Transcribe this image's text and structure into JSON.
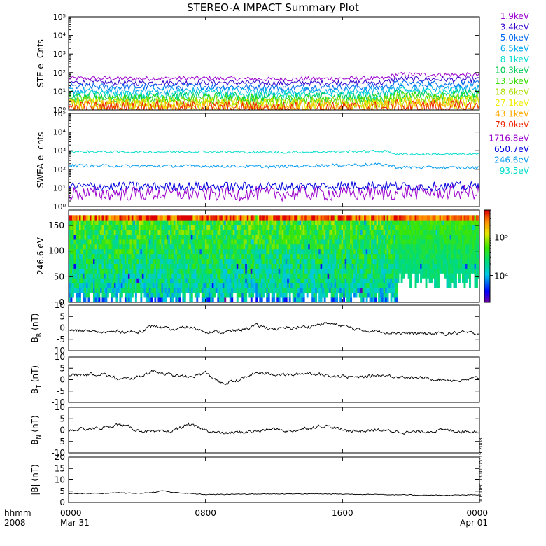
{
  "title": "STEREO-A IMPACT Summary Plot",
  "time_axis": {
    "left_labels": [
      "hhmm",
      "2008"
    ],
    "ticks": [
      {
        "hour": 0,
        "label": "0000",
        "sublabel": "Mar 31"
      },
      {
        "hour": 8,
        "label": "0800",
        "sublabel": ""
      },
      {
        "hour": 16,
        "label": "1600",
        "sublabel": ""
      },
      {
        "hour": 24,
        "label": "0000",
        "sublabel": "Apr 01"
      }
    ],
    "range_hours": [
      0,
      24
    ]
  },
  "side_note": "Tue Dec 13 01:05:19 2008",
  "colorbar": {
    "tick_labels": [
      "10⁴",
      "10⁵"
    ],
    "range": [
      2000,
      500000
    ],
    "scale": "log"
  },
  "chart_data": [
    {
      "type": "line",
      "panel": "STE",
      "ylabel": "STE e- Cnts",
      "yscale": "log",
      "ylim": [
        1,
        100000
      ],
      "ytick_labels": [
        "10⁰",
        "10¹",
        "10²",
        "10³",
        "10⁴",
        "10⁵"
      ],
      "x_hours": [
        0,
        4,
        8,
        12,
        16,
        18.5,
        19.2,
        24
      ],
      "series": [
        {
          "name": "1.9keV",
          "color": "#9900cc",
          "values": [
            50,
            48,
            50,
            44,
            48,
            48,
            80,
            75
          ]
        },
        {
          "name": "3.4keV",
          "color": "#3300cc",
          "values": [
            30,
            28,
            30,
            27,
            29,
            29,
            45,
            42
          ]
        },
        {
          "name": "5.0keV",
          "color": "#0066ee",
          "values": [
            18,
            17,
            18,
            16,
            17,
            17,
            26,
            24
          ]
        },
        {
          "name": "6.5keV",
          "color": "#00aaee",
          "values": [
            11,
            10,
            11,
            10,
            10,
            10,
            16,
            15
          ]
        },
        {
          "name": "8.1keV",
          "color": "#00ddcc",
          "values": [
            7,
            6.5,
            7,
            6.5,
            6.5,
            6.5,
            10,
            9
          ]
        },
        {
          "name": "10.3keV",
          "color": "#00cc55",
          "values": [
            5,
            4.6,
            5,
            4.6,
            4.6,
            4.6,
            7,
            6.5
          ]
        },
        {
          "name": "13.5keV",
          "color": "#33dd00",
          "values": [
            3.6,
            3.4,
            3.6,
            3.3,
            3.4,
            3.4,
            5,
            4.6
          ]
        },
        {
          "name": "18.6keV",
          "color": "#aadd00",
          "values": [
            2.6,
            2.5,
            2.6,
            2.4,
            2.5,
            2.5,
            3.6,
            3.4
          ]
        },
        {
          "name": "27.1keV",
          "color": "#eeee00",
          "values": [
            1.9,
            1.8,
            1.9,
            1.8,
            1.8,
            1.8,
            2.6,
            2.5
          ]
        },
        {
          "name": "43.1keV",
          "color": "#ffaa00",
          "values": [
            1.5,
            1.4,
            1.5,
            1.4,
            1.4,
            1.4,
            1.9,
            1.8
          ]
        },
        {
          "name": "79.0keV",
          "color": "#ee2200",
          "values": [
            1.2,
            1.15,
            1.2,
            1.15,
            1.15,
            1.15,
            1.4,
            1.35
          ]
        }
      ]
    },
    {
      "type": "line",
      "panel": "SWEA",
      "ylabel": "SWEA e- cnts",
      "yscale": "log",
      "ylim": [
        1,
        100000
      ],
      "ytick_labels": [
        "10⁰",
        "10¹",
        "10²",
        "10³",
        "10⁴",
        "10⁵"
      ],
      "x_hours": [
        0,
        4,
        8,
        12,
        16,
        18.5,
        19.2,
        24
      ],
      "series": [
        {
          "name": "1716.8eV",
          "color": "#9900cc",
          "values": [
            5,
            5,
            5,
            5,
            5,
            5,
            6,
            6
          ]
        },
        {
          "name": "650.7eV",
          "color": "#0000dd",
          "values": [
            12,
            12,
            12,
            12,
            13,
            14,
            12,
            12
          ]
        },
        {
          "name": "246.6eV",
          "color": "#0099ee",
          "values": [
            160,
            150,
            150,
            140,
            170,
            180,
            130,
            120
          ]
        },
        {
          "name": "93.5eV",
          "color": "#00ddcc",
          "values": [
            900,
            850,
            900,
            800,
            900,
            950,
            650,
            650
          ]
        }
      ]
    },
    {
      "type": "heatmap",
      "panel": "PAD",
      "ylabel": "246.6 eV",
      "ylim": [
        0,
        180
      ],
      "yticks": [
        0,
        50,
        100,
        150
      ],
      "x_hours": [
        0,
        6,
        12,
        18.5,
        19.5,
        22,
        24
      ],
      "typical_value_range": [
        8000,
        80000
      ],
      "top_edge_value": 200000
    },
    {
      "type": "line",
      "panel": "BR",
      "ylabel": "B",
      "ylabel_sub": "R",
      "ylabel_unit": "(nT)",
      "ylim": [
        -10,
        10
      ],
      "yticks": [
        -10,
        -5,
        0,
        5,
        10
      ],
      "x_hours": [
        0,
        2,
        3,
        4,
        5,
        6,
        7,
        8,
        9,
        10,
        11,
        12,
        13,
        14,
        15,
        16,
        17,
        18,
        19,
        20,
        21,
        22,
        23,
        24
      ],
      "values": [
        -1,
        -2,
        -1.5,
        -2,
        1,
        -1,
        0.5,
        -1.5,
        -2,
        -1,
        1,
        -0.5,
        0,
        0.5,
        2,
        1,
        -1,
        -1.5,
        -2,
        -2.5,
        -2.5,
        -2.5,
        -2,
        -2.5
      ]
    },
    {
      "type": "line",
      "panel": "BT",
      "ylabel": "B",
      "ylabel_sub": "T",
      "ylabel_unit": "(nT)",
      "ylim": [
        -10,
        10
      ],
      "yticks": [
        -10,
        -5,
        0,
        5,
        10
      ],
      "x_hours": [
        0,
        2,
        3,
        4,
        5,
        6,
        7,
        8,
        9,
        10,
        11,
        12,
        13,
        14,
        15,
        16,
        17,
        18,
        19,
        20,
        21,
        22,
        23,
        24
      ],
      "values": [
        2,
        2.5,
        0,
        1,
        4,
        2,
        1,
        3,
        -2,
        0,
        3,
        2.5,
        2,
        3,
        2,
        1.5,
        1,
        2,
        1.5,
        1,
        0.5,
        0,
        -0.5,
        1
      ]
    },
    {
      "type": "line",
      "panel": "BN",
      "ylabel": "B",
      "ylabel_sub": "N",
      "ylabel_unit": "(nT)",
      "ylim": [
        -10,
        10
      ],
      "yticks": [
        -10,
        -5,
        0,
        5,
        10
      ],
      "x_hours": [
        0,
        2,
        3,
        4,
        5,
        6,
        7,
        8,
        9,
        10,
        11,
        12,
        13,
        14,
        15,
        16,
        17,
        18,
        19,
        20,
        21,
        22,
        23,
        24
      ],
      "values": [
        0,
        1,
        2.5,
        0,
        -1,
        -0.5,
        2.5,
        0,
        -1.5,
        -1,
        -0.5,
        0.5,
        -0.5,
        1,
        2,
        0,
        -0.5,
        0,
        -0.5,
        -1,
        -0.5,
        0,
        -0.5,
        -0.5
      ]
    },
    {
      "type": "line",
      "panel": "Bmag",
      "ylabel": "|B| (nT)",
      "ylim": [
        0,
        20
      ],
      "yticks": [
        0,
        5,
        10,
        15,
        20
      ],
      "x_hours": [
        0,
        2,
        3,
        4,
        5,
        5.5,
        6,
        7,
        8,
        10,
        12,
        14,
        16,
        18,
        20,
        22,
        24
      ],
      "values": [
        4,
        4,
        4.2,
        4,
        4.5,
        5.2,
        4.5,
        4,
        3.5,
        3.7,
        3.8,
        3.8,
        3.7,
        3.6,
        3.3,
        3.2,
        3.4
      ]
    }
  ]
}
